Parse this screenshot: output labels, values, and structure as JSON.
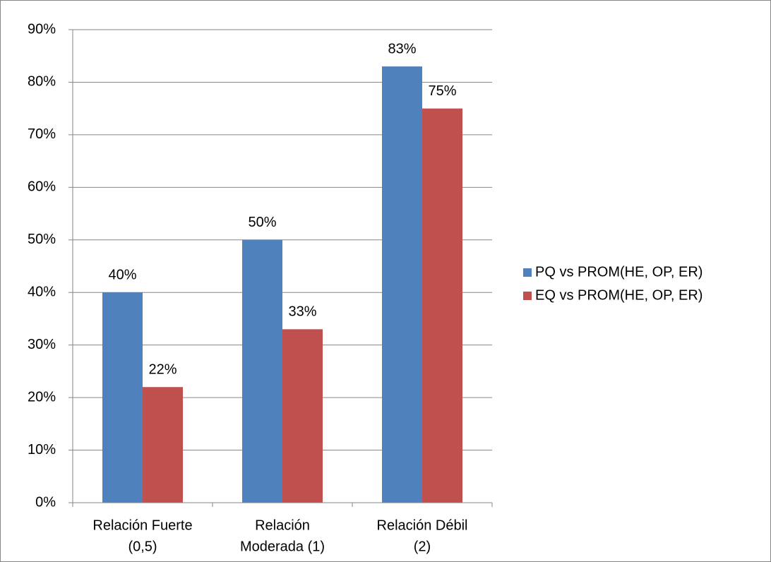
{
  "chart_data": {
    "type": "bar",
    "categories": [
      [
        "Relación Fuerte",
        "(0,5)"
      ],
      [
        "Relación",
        "Moderada (1)"
      ],
      [
        "Relación Débil",
        "(2)"
      ]
    ],
    "series": [
      {
        "name": "PQ vs PROM(HE, OP, ER)",
        "color": "#4f81bd",
        "values": [
          40,
          50,
          83
        ],
        "value_labels": [
          "40%",
          "50%",
          "83%"
        ]
      },
      {
        "name": "EQ vs PROM(HE, OP, ER)",
        "color": "#c0504d",
        "values": [
          22,
          33,
          75
        ],
        "value_labels": [
          "22%",
          "33%",
          "75%"
        ]
      }
    ],
    "ylim": [
      0,
      90
    ],
    "yticks": [
      {
        "value": 0,
        "label": "0%"
      },
      {
        "value": 10,
        "label": "10%"
      },
      {
        "value": 20,
        "label": "20%"
      },
      {
        "value": 30,
        "label": "30%"
      },
      {
        "value": 40,
        "label": "40%"
      },
      {
        "value": 50,
        "label": "50%"
      },
      {
        "value": 60,
        "label": "60%"
      },
      {
        "value": 70,
        "label": "70%"
      },
      {
        "value": 80,
        "label": "80%"
      },
      {
        "value": 90,
        "label": "90%"
      }
    ],
    "grid": true,
    "legend": "right"
  }
}
